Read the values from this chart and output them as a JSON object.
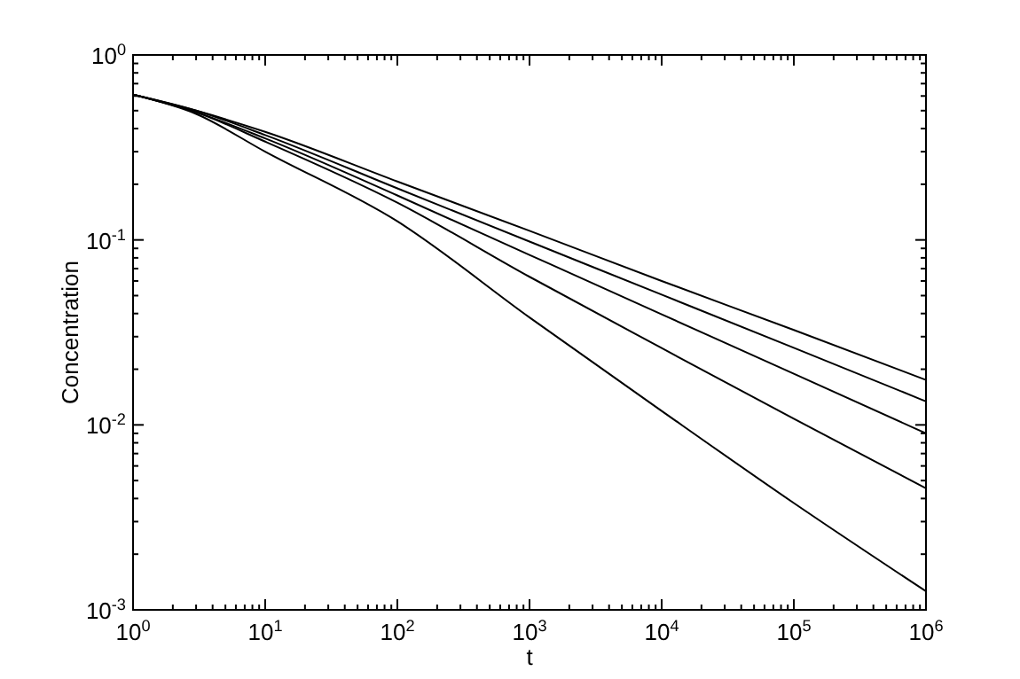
{
  "chart_data": {
    "type": "line",
    "xlabel": "t",
    "ylabel": "Concentration",
    "log": "xy",
    "grid": false,
    "marker": "none",
    "line_style": "solid",
    "x": [
      1,
      3,
      10,
      100,
      1000,
      10000,
      100000,
      1000000
    ],
    "xlim": [
      1,
      1000000
    ],
    "ylim": [
      0.001,
      1
    ],
    "xticks": [
      {
        "value": 1,
        "label": "10$^{0}$"
      },
      {
        "value": 2,
        "label": null
      },
      {
        "value": 3,
        "label": null
      },
      {
        "value": 4,
        "label": null
      },
      {
        "value": 5,
        "label": null
      },
      {
        "value": 6,
        "label": null
      },
      {
        "value": 7,
        "label": null
      },
      {
        "value": 8,
        "label": null
      },
      {
        "value": 9,
        "label": null
      },
      {
        "value": 10,
        "label": "10$^{1}$"
      },
      {
        "value": 20,
        "label": null
      },
      {
        "value": 30,
        "label": null
      },
      {
        "value": 40,
        "label": null
      },
      {
        "value": 50,
        "label": null
      },
      {
        "value": 60,
        "label": null
      },
      {
        "value": 70,
        "label": null
      },
      {
        "value": 80,
        "label": null
      },
      {
        "value": 90,
        "label": null
      },
      {
        "value": 100,
        "label": "10$^{2}$"
      },
      {
        "value": 200,
        "label": null
      },
      {
        "value": 300,
        "label": null
      },
      {
        "value": 400,
        "label": null
      },
      {
        "value": 500,
        "label": null
      },
      {
        "value": 600,
        "label": null
      },
      {
        "value": 700,
        "label": null
      },
      {
        "value": 800,
        "label": null
      },
      {
        "value": 900,
        "label": null
      },
      {
        "value": 1000,
        "label": "10$^{3}$"
      },
      {
        "value": 2000,
        "label": null
      },
      {
        "value": 3000,
        "label": null
      },
      {
        "value": 4000,
        "label": null
      },
      {
        "value": 5000,
        "label": null
      },
      {
        "value": 6000,
        "label": null
      },
      {
        "value": 7000,
        "label": null
      },
      {
        "value": 8000,
        "label": null
      },
      {
        "value": 9000,
        "label": null
      },
      {
        "value": 10000,
        "label": "10$^{4}$"
      },
      {
        "value": 20000,
        "label": null
      },
      {
        "value": 30000,
        "label": null
      },
      {
        "value": 40000,
        "label": null
      },
      {
        "value": 50000,
        "label": null
      },
      {
        "value": 60000,
        "label": null
      },
      {
        "value": 70000,
        "label": null
      },
      {
        "value": 80000,
        "label": null
      },
      {
        "value": 90000,
        "label": null
      },
      {
        "value": 100000,
        "label": "10$^{5}$"
      },
      {
        "value": 200000,
        "label": null
      },
      {
        "value": 300000,
        "label": null
      },
      {
        "value": 400000,
        "label": null
      },
      {
        "value": 500000,
        "label": null
      },
      {
        "value": 600000,
        "label": null
      },
      {
        "value": 700000,
        "label": null
      },
      {
        "value": 800000,
        "label": null
      },
      {
        "value": 900000,
        "label": null
      },
      {
        "value": 1000000,
        "label": "10$^{6}$"
      }
    ],
    "yticks": [
      {
        "value": 0.001,
        "label": "10$^{-3}$"
      },
      {
        "value": 0.002,
        "label": null
      },
      {
        "value": 0.003,
        "label": null
      },
      {
        "value": 0.004,
        "label": null
      },
      {
        "value": 0.005,
        "label": null
      },
      {
        "value": 0.006,
        "label": null
      },
      {
        "value": 0.007,
        "label": null
      },
      {
        "value": 0.008,
        "label": null
      },
      {
        "value": 0.009,
        "label": null
      },
      {
        "value": 0.01,
        "label": "10$^{-2}$"
      },
      {
        "value": 0.02,
        "label": null
      },
      {
        "value": 0.03,
        "label": null
      },
      {
        "value": 0.04,
        "label": null
      },
      {
        "value": 0.05,
        "label": null
      },
      {
        "value": 0.06,
        "label": null
      },
      {
        "value": 0.07,
        "label": null
      },
      {
        "value": 0.08,
        "label": null
      },
      {
        "value": 0.09,
        "label": null
      },
      {
        "value": 0.1,
        "label": "10$^{-1}$"
      },
      {
        "value": 0.2,
        "label": null
      },
      {
        "value": 0.3,
        "label": null
      },
      {
        "value": 0.4,
        "label": null
      },
      {
        "value": 0.5,
        "label": null
      },
      {
        "value": 0.6,
        "label": null
      },
      {
        "value": 0.7,
        "label": null
      },
      {
        "value": 0.8,
        "label": null
      },
      {
        "value": 0.9,
        "label": null
      },
      {
        "value": 1,
        "label": "10$^{0}$"
      }
    ],
    "series": [
      {
        "color": "#000000",
        "values": [
          0.61,
          0.5,
          0.384,
          0.207,
          0.112,
          0.06,
          0.0326,
          0.0175
        ]
      },
      {
        "color": "#000000",
        "values": [
          0.61,
          0.5,
          0.369,
          0.19,
          0.098,
          0.0506,
          0.0261,
          0.0134
        ]
      },
      {
        "color": "#000000",
        "values": [
          0.61,
          0.49,
          0.354,
          0.174,
          0.083,
          0.0396,
          0.0189,
          0.009
        ]
      },
      {
        "color": "#000000",
        "values": [
          0.61,
          0.49,
          0.34,
          0.159,
          0.0632,
          0.026,
          0.0108,
          0.00454
        ]
      },
      {
        "color": "#000000",
        "values": [
          0.61,
          0.48,
          0.3,
          0.126,
          0.0381,
          0.0119,
          0.00378,
          0.00126
        ]
      }
    ]
  }
}
